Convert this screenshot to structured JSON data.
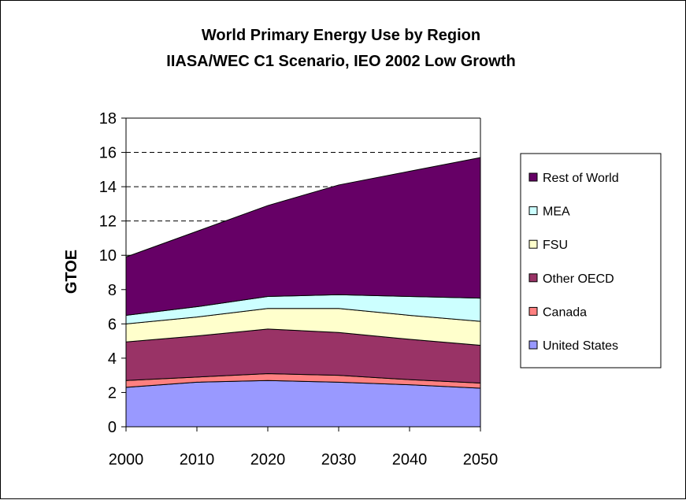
{
  "chart_data": {
    "type": "area",
    "stacked": true,
    "title": "World Primary Energy Use by Region",
    "subtitle": "IIASA/WEC C1 Scenario, IEO 2002 Low Growth",
    "xlabel": "",
    "ylabel": "GTOE",
    "x": [
      2000,
      2010,
      2020,
      2030,
      2040,
      2050
    ],
    "ylim": [
      0,
      18
    ],
    "yticks": [
      0,
      2,
      4,
      6,
      8,
      10,
      12,
      14,
      16,
      18
    ],
    "grid": "horizontal dashed",
    "legend_position": "right",
    "series": [
      {
        "name": "United States",
        "color": "#9999ff",
        "values": [
          2.3,
          2.6,
          2.7,
          2.6,
          2.45,
          2.25
        ]
      },
      {
        "name": "Canada",
        "color": "#ff8080",
        "values": [
          0.4,
          0.3,
          0.4,
          0.4,
          0.3,
          0.3
        ]
      },
      {
        "name": "Other OECD",
        "color": "#993366",
        "values": [
          2.25,
          2.4,
          2.6,
          2.5,
          2.35,
          2.2
        ]
      },
      {
        "name": "FSU",
        "color": "#ffffcc",
        "values": [
          1.05,
          1.1,
          1.2,
          1.4,
          1.4,
          1.4
        ]
      },
      {
        "name": "MEA",
        "color": "#ccffff",
        "values": [
          0.5,
          0.6,
          0.7,
          0.8,
          1.1,
          1.35
        ]
      },
      {
        "name": "Rest of World",
        "color": "#660066",
        "values": [
          3.4,
          4.4,
          5.3,
          6.4,
          7.3,
          8.2
        ]
      }
    ]
  }
}
